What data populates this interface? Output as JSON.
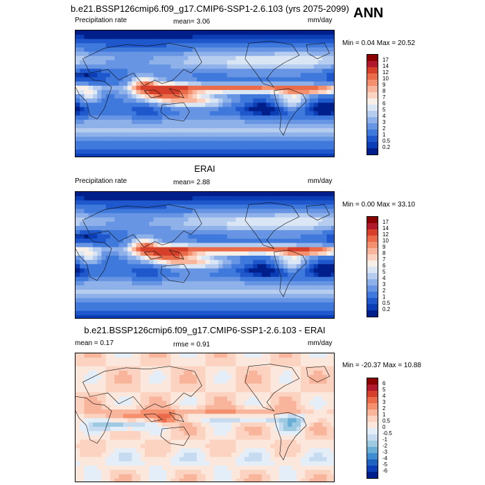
{
  "season": "ANN",
  "panels": [
    {
      "title": "b.e21.BSSP126cmip6.f09_g17.CMIP6-SSP1-2.6.103 (yrs 2075-2099)",
      "left": "Precipitation rate",
      "center": "mean=  3.06",
      "right": "mm/day",
      "minmax": "Min =  0.04 Max =  20.52",
      "field": "abs",
      "colorbar": {
        "labels": [
          "17",
          "14",
          "12",
          "10",
          "9",
          "8",
          "7",
          "6",
          "5",
          "4",
          "3",
          "2",
          "1",
          "0.5",
          "0.2"
        ],
        "colors": [
          "#8b0000",
          "#b2182b",
          "#d6402b",
          "#ea6b4a",
          "#f4906e",
          "#f9b59b",
          "#fbd3c0",
          "#f7efe8",
          "#dbe6f5",
          "#b6cdef",
          "#8eb1e9",
          "#6795e3",
          "#3f79dc",
          "#1f58cc",
          "#0a3db6",
          "#001f8b"
        ]
      }
    },
    {
      "title": "ERAI",
      "left": "Precipitation rate",
      "center": "mean=  2.88",
      "right": "mm/day",
      "minmax": "Min =  0.00 Max =  33.10",
      "field": "abs2",
      "colorbar": {
        "labels": [
          "17",
          "14",
          "12",
          "10",
          "9",
          "8",
          "7",
          "6",
          "5",
          "4",
          "3",
          "2",
          "1",
          "0.5",
          "0.2"
        ],
        "colors": [
          "#8b0000",
          "#b2182b",
          "#d6402b",
          "#ea6b4a",
          "#f4906e",
          "#f9b59b",
          "#fbd3c0",
          "#f7efe8",
          "#dbe6f5",
          "#b6cdef",
          "#8eb1e9",
          "#6795e3",
          "#3f79dc",
          "#1f58cc",
          "#0a3db6",
          "#001f8b"
        ]
      }
    },
    {
      "title": "b.e21.BSSP126cmip6.f09_g17.CMIP6-SSP1-2.6.103 - ERAI",
      "left": "mean =   0.17",
      "center": "rmse =   0.91",
      "right": "mm/day",
      "minmax": "Min = -20.37 Max =  10.88",
      "field": "diff",
      "colorbar": {
        "labels": [
          "6",
          "5",
          "4",
          "3",
          "2",
          "1",
          "0.5",
          "0",
          "-0.5",
          "-1",
          "-2",
          "-3",
          "-4",
          "-5",
          "-6"
        ],
        "colors": [
          "#8b0000",
          "#b2182b",
          "#d6402b",
          "#ea6b4a",
          "#f4906e",
          "#f9b59b",
          "#fbd3c0",
          "#fbe7dc",
          "#e3eef9",
          "#c6dbef",
          "#9ecae1",
          "#6aaed6",
          "#3d8dd0",
          "#1f62c0",
          "#0a3db6",
          "#001f8b"
        ]
      }
    }
  ]
}
